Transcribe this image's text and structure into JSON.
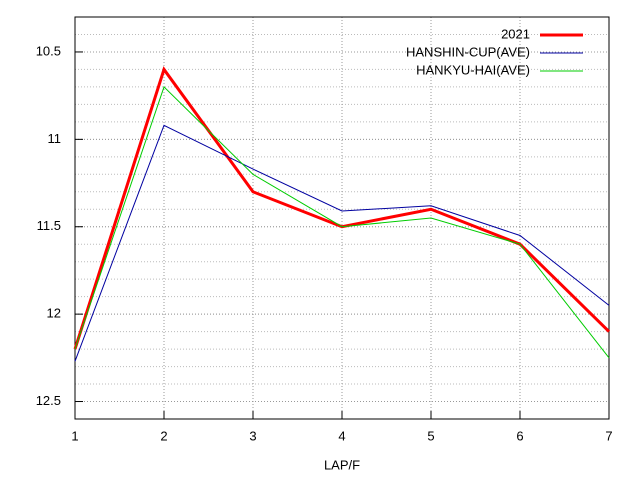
{
  "chart_data": {
    "type": "line",
    "xlabel": "LAP/F",
    "x": [
      1,
      2,
      3,
      4,
      5,
      6,
      7
    ],
    "xlim": [
      1,
      7
    ],
    "xticks": [
      1,
      2,
      3,
      4,
      5,
      6,
      7
    ],
    "ylim": [
      12.6,
      10.3
    ],
    "yticks": [
      10.5,
      11,
      11.5,
      12,
      12.5
    ],
    "yminor": 5,
    "grid": true,
    "legend": "top-right",
    "series": [
      {
        "name": "2021",
        "color": "#ff0000",
        "width": 3,
        "values": [
          12.2,
          10.6,
          11.3,
          11.5,
          11.4,
          11.6,
          12.1
        ]
      },
      {
        "name": "HANSHIN-CUP(AVE)",
        "color": "#0000a0",
        "width": 1,
        "values": [
          12.27,
          10.92,
          11.17,
          11.41,
          11.38,
          11.55,
          11.95
        ]
      },
      {
        "name": "HANKYU-HAI(AVE)",
        "color": "#00cc00",
        "width": 1,
        "values": [
          12.2,
          10.7,
          11.2,
          11.5,
          11.45,
          11.6,
          12.25
        ]
      }
    ]
  }
}
